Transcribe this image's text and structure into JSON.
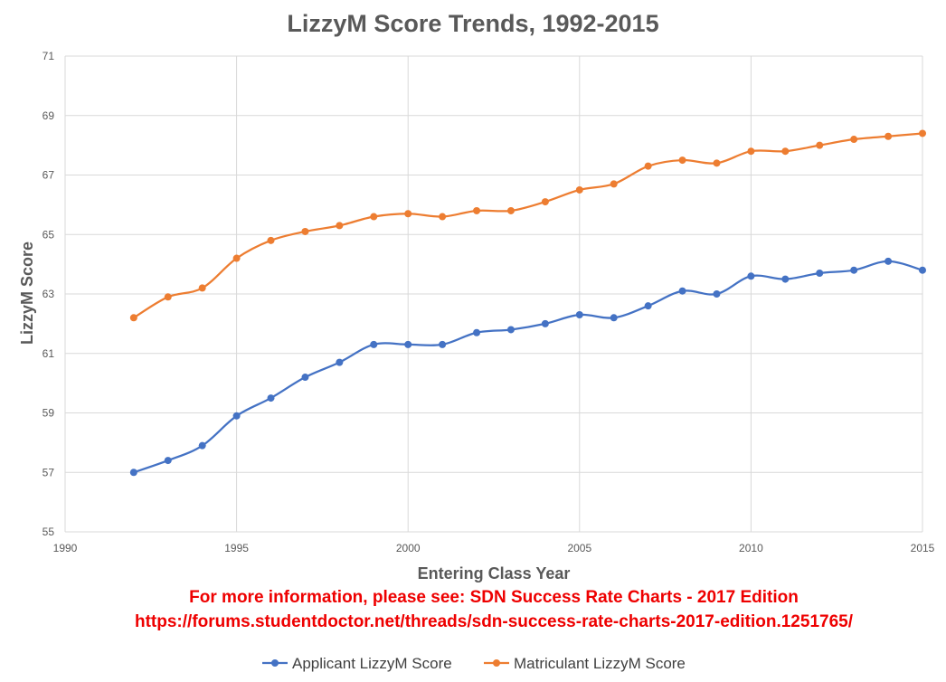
{
  "chart_data": {
    "type": "line",
    "title": "LizzyM Score Trends, 1992-2015",
    "xlabel": "Entering Class Year",
    "ylabel": "LizzyM Score",
    "xlim": [
      1990,
      2015
    ],
    "ylim": [
      55,
      71
    ],
    "x_ticks": [
      1990,
      1995,
      2000,
      2005,
      2010,
      2015
    ],
    "y_ticks": [
      55,
      57,
      59,
      61,
      63,
      65,
      67,
      69,
      71
    ],
    "grid": true,
    "smooth": true,
    "legend_position": "bottom",
    "x": [
      1992,
      1993,
      1994,
      1995,
      1996,
      1997,
      1998,
      1999,
      2000,
      2001,
      2002,
      2003,
      2004,
      2005,
      2006,
      2007,
      2008,
      2009,
      2010,
      2011,
      2012,
      2013,
      2014,
      2015
    ],
    "series": [
      {
        "name": "Applicant LizzyM Score",
        "color": "#4472c4",
        "values": [
          57.0,
          57.4,
          57.9,
          58.9,
          59.5,
          60.2,
          60.7,
          61.3,
          61.3,
          61.3,
          61.7,
          61.8,
          62.0,
          62.3,
          62.2,
          62.6,
          63.1,
          63.0,
          63.6,
          63.5,
          63.7,
          63.8,
          64.1,
          63.8
        ]
      },
      {
        "name": "Matriculant LizzyM Score",
        "color": "#ed7d31",
        "values": [
          62.2,
          62.9,
          63.2,
          64.2,
          64.8,
          65.1,
          65.3,
          65.6,
          65.7,
          65.6,
          65.8,
          65.8,
          66.1,
          66.5,
          66.7,
          67.3,
          67.5,
          67.4,
          67.8,
          67.8,
          68.0,
          68.2,
          68.3,
          68.4
        ]
      }
    ],
    "annotations": [
      "For more information, please see: SDN Success Rate Charts - 2017 Edition",
      "https://forums.studentdoctor.net/threads/sdn-success-rate-charts-2017-edition.1251765/"
    ],
    "annotation_color": "#ee0000"
  }
}
